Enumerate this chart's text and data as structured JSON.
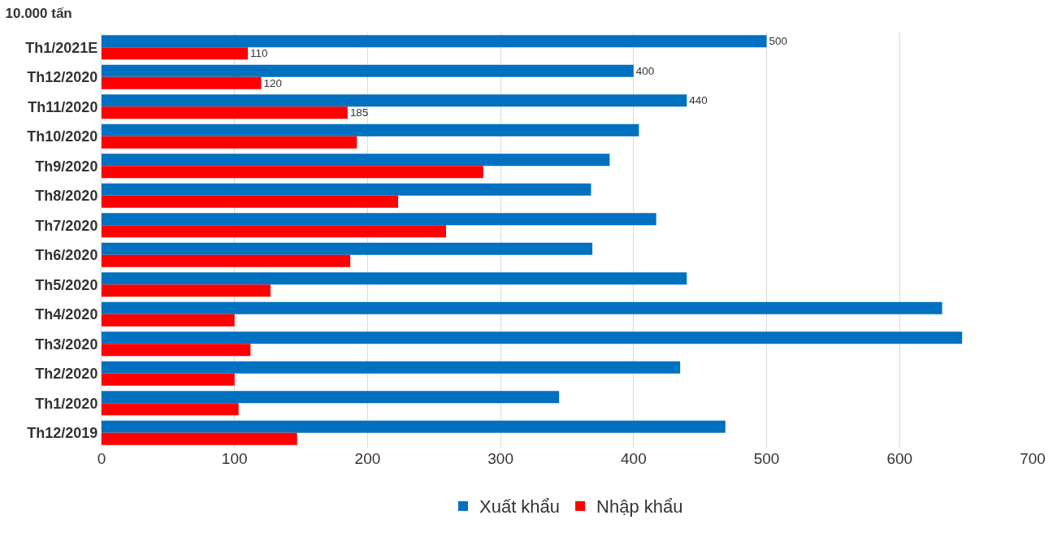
{
  "chart_data": {
    "type": "bar",
    "orientation": "horizontal",
    "title": "10.000 tấn",
    "categories": [
      "Th1/2021E",
      "Th12/2020",
      "Th11/2020",
      "Th10/2020",
      "Th9/2020",
      "Th8/2020",
      "Th7/2020",
      "Th6/2020",
      "Th5/2020",
      "Th4/2020",
      "Th3/2020",
      "Th2/2020",
      "Th1/2020",
      "Th12/2019"
    ],
    "series": [
      {
        "name": "Xuất khẩu",
        "color": "#0070c0",
        "values": [
          500,
          400,
          440,
          404,
          382,
          368,
          417,
          369,
          440,
          632,
          647,
          435,
          344,
          469
        ],
        "value_labels": [
          "500",
          "400",
          "440",
          null,
          null,
          null,
          null,
          null,
          null,
          null,
          null,
          null,
          null,
          null
        ]
      },
      {
        "name": "Nhập khẩu",
        "color": "#ff0000",
        "values": [
          110,
          120,
          185,
          192,
          287,
          223,
          259,
          187,
          127,
          100,
          112,
          100,
          103,
          147
        ],
        "value_labels": [
          "110",
          "120",
          "185",
          null,
          null,
          null,
          null,
          null,
          null,
          null,
          null,
          null,
          null,
          null
        ]
      }
    ],
    "xlim": [
      0,
      700
    ],
    "xticks": [
      0,
      100,
      200,
      300,
      400,
      500,
      600,
      700
    ],
    "grid": "x",
    "legend": "bottom"
  }
}
